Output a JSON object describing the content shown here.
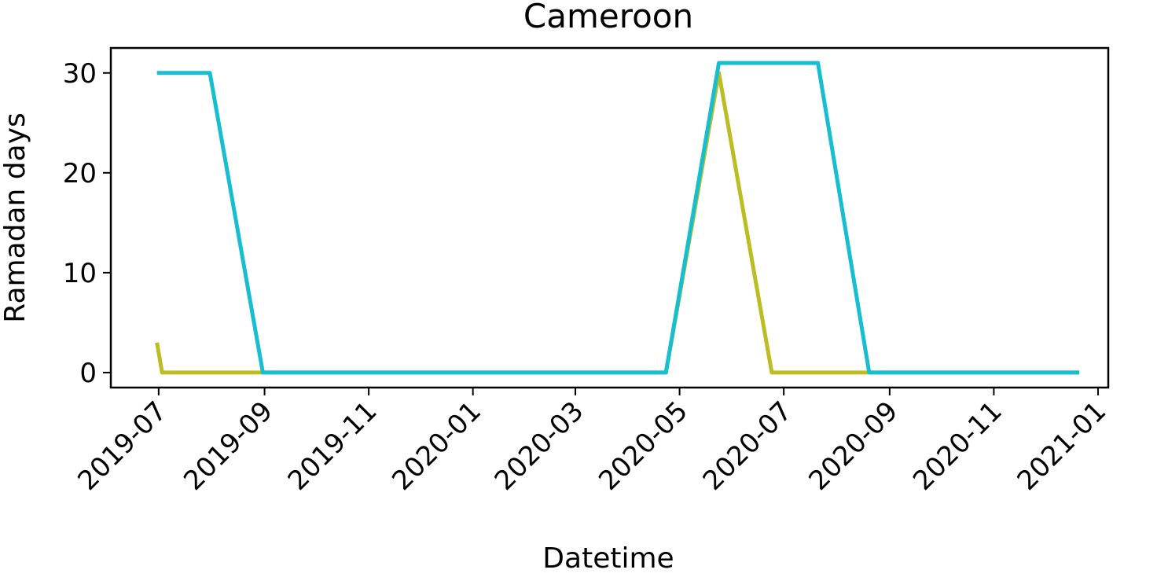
{
  "chart_data": {
    "type": "line",
    "title": "Cameroon",
    "xlabel": "Datetime",
    "ylabel": "Ramadan days",
    "xlim": [
      "2019-06-03",
      "2021-01-07"
    ],
    "ylim": [
      -1.5,
      32.5
    ],
    "yticks": [
      0,
      10,
      20,
      30
    ],
    "xticks": [
      "2019-07",
      "2019-09",
      "2019-11",
      "2020-01",
      "2020-03",
      "2020-05",
      "2020-07",
      "2020-09",
      "2020-11",
      "2021-01"
    ],
    "grid": false,
    "series": [
      {
        "color": "#bcbd22",
        "x": [
          "2019-06-30",
          "2019-07-03",
          "2019-08-31",
          "2019-10-31",
          "2019-12-31",
          "2020-03-31",
          "2020-04-23",
          "2020-05-24",
          "2020-06-24",
          "2020-08-20",
          "2020-12-21"
        ],
        "y": [
          3,
          0,
          0,
          0,
          0,
          0,
          0,
          30,
          0,
          0,
          0
        ]
      },
      {
        "color": "#17becf",
        "x": [
          "2019-06-30",
          "2019-07-31",
          "2019-08-31",
          "2019-10-31",
          "2019-12-31",
          "2020-03-31",
          "2020-04-23",
          "2020-05-24",
          "2020-07-21",
          "2020-08-20",
          "2020-12-21"
        ],
        "y": [
          30,
          30,
          0,
          0,
          0,
          0,
          0,
          31,
          31,
          0,
          0
        ]
      }
    ]
  }
}
